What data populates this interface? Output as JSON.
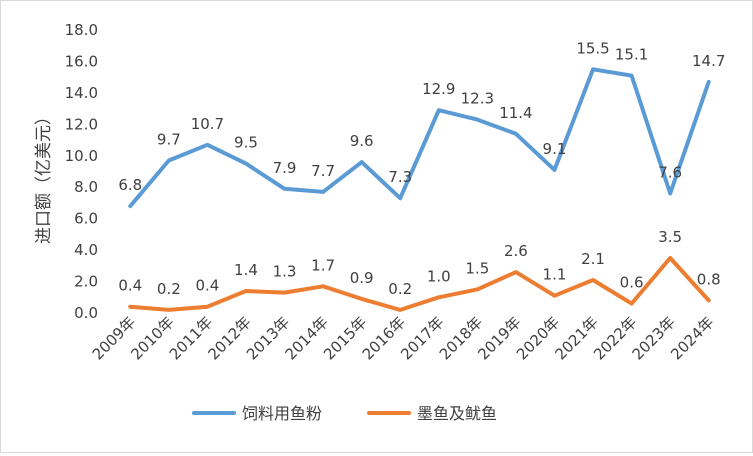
{
  "chart_data": {
    "type": "line",
    "ylabel": "进口额（亿美元）",
    "xlabel": "",
    "categories": [
      "2009年",
      "2010年",
      "2011年",
      "2012年",
      "2013年",
      "2014年",
      "2015年",
      "2016年",
      "2017年",
      "2018年",
      "2019年",
      "2020年",
      "2021年",
      "2022年",
      "2023年",
      "2024年"
    ],
    "y_ticks": [
      "0.0",
      "2.0",
      "4.0",
      "6.0",
      "8.0",
      "10.0",
      "12.0",
      "14.0",
      "16.0",
      "18.0"
    ],
    "ylim": [
      0,
      18
    ],
    "grid": false,
    "legend_position": "bottom",
    "series": [
      {
        "name": "饲料用鱼粉",
        "color": "#5B9BD5",
        "values": [
          6.8,
          9.7,
          10.7,
          9.5,
          7.9,
          7.7,
          9.6,
          7.3,
          12.9,
          12.3,
          11.4,
          9.1,
          15.5,
          15.1,
          7.6,
          14.7
        ],
        "labels": [
          "6.8",
          "9.7",
          "10.7",
          "9.5",
          "7.9",
          "7.7",
          "9.6",
          "7.3",
          "12.9",
          "12.3",
          "11.4",
          "9.1",
          "15.5",
          "15.1",
          "7.6",
          "14.7"
        ]
      },
      {
        "name": "墨鱼及鱿鱼",
        "color": "#ED7D31",
        "values": [
          0.4,
          0.2,
          0.4,
          1.4,
          1.3,
          1.7,
          0.9,
          0.2,
          1.0,
          1.5,
          2.6,
          1.1,
          2.1,
          0.6,
          3.5,
          0.8
        ],
        "labels": [
          "0.4",
          "0.2",
          "0.4",
          "1.4",
          "1.3",
          "1.7",
          "0.9",
          "0.2",
          "1.0",
          "1.5",
          "2.6",
          "1.1",
          "2.1",
          "0.6",
          "3.5",
          "0.8"
        ]
      }
    ]
  }
}
